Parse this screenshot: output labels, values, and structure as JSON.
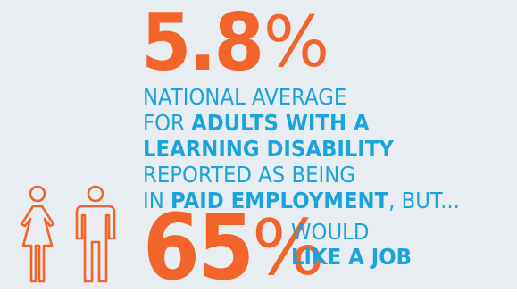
{
  "colors": {
    "background": "#E8EDF2",
    "accent": "#F2642A",
    "text": "#1BA3DD"
  },
  "headline_stat": {
    "value": "5.8",
    "unit": "%"
  },
  "description": {
    "line1": "NATIONAL AVERAGE",
    "line2_prefix": "FOR ",
    "line2_bold": "ADULTS WITH A",
    "line3_bold": "LEARNING DISABILITY",
    "line4": "REPORTED AS BEING",
    "line5_prefix": "IN ",
    "line5_bold": "PAID EMPLOYMENT",
    "line5_suffix": ", BUT..."
  },
  "icons": [
    "woman-icon",
    "man-icon"
  ],
  "second_stat": {
    "value": "65",
    "unit": "%",
    "label_line1": "WOULD",
    "label_line2": "LIKE A JOB"
  }
}
